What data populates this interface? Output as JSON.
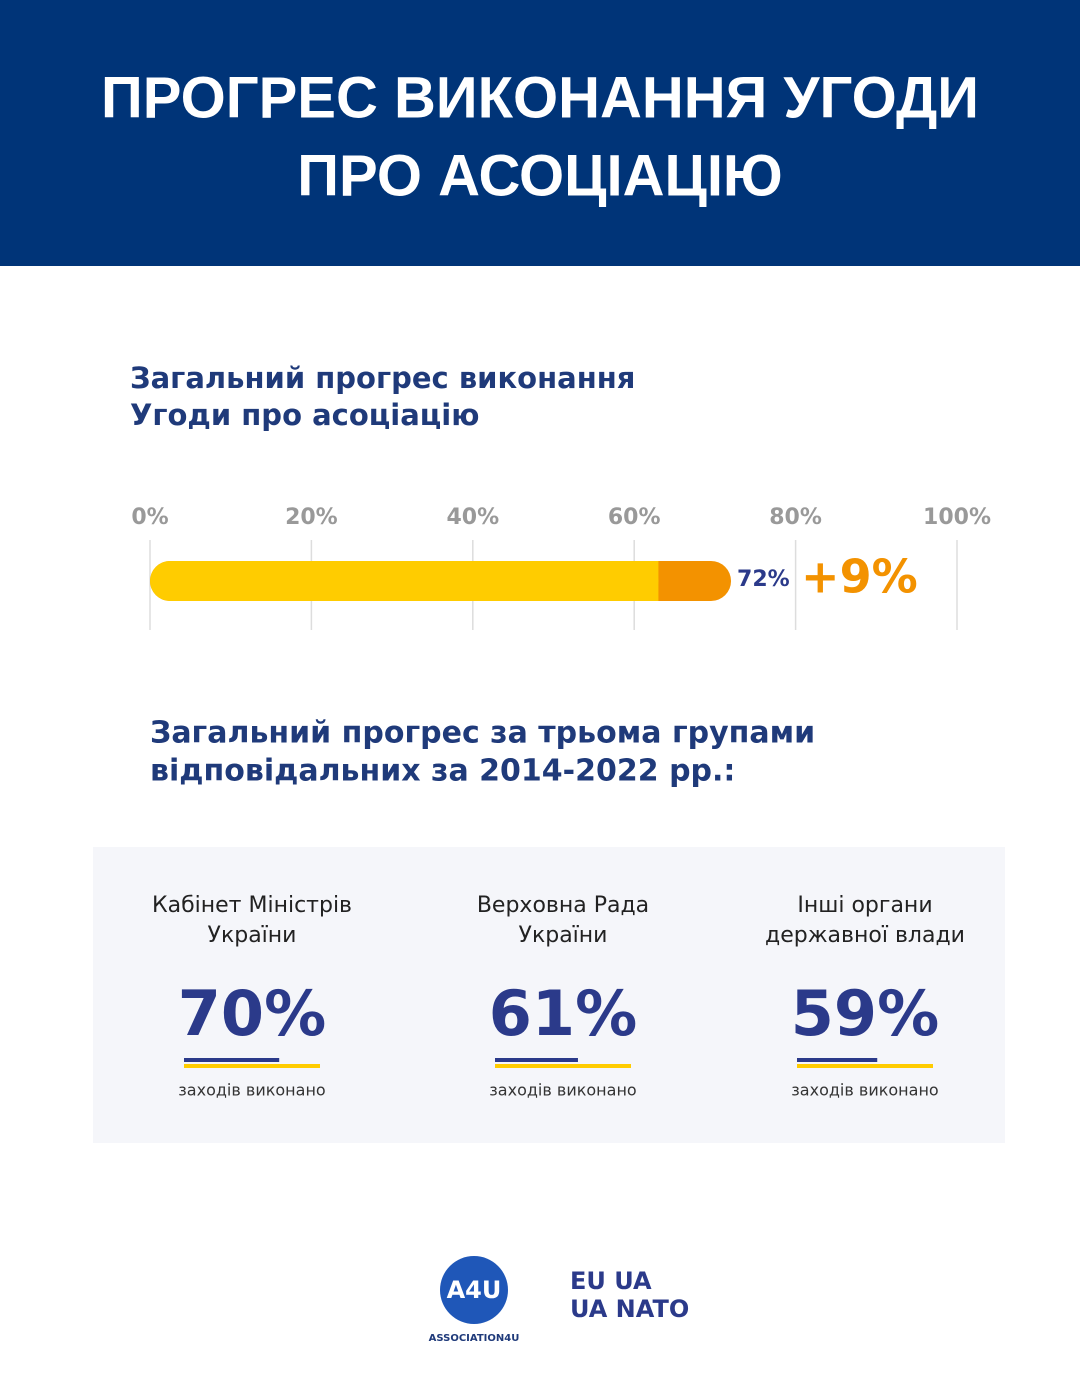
{
  "header": {
    "title_lines": [
      "ПРОГРЕС ВИКОНАННЯ УГОДИ",
      "ПРО АСОЦІАЦІЮ"
    ]
  },
  "progress": {
    "title_lines": [
      "Загальний прогрес виконання",
      "Угоди про асоціацію"
    ],
    "xlim": [
      0,
      100
    ],
    "xticks": [
      {
        "value": 0,
        "label": "0%"
      },
      {
        "value": 20,
        "label": "20%"
      },
      {
        "value": 40,
        "label": "40%"
      },
      {
        "value": 60,
        "label": "60%"
      },
      {
        "value": 80,
        "label": "80%"
      },
      {
        "value": 100,
        "label": "100%"
      }
    ],
    "value": 72,
    "value_label": "72%",
    "increase": 9,
    "increase_label": "+9%",
    "base_color": "#ffcc00",
    "increase_color": "#f39200"
  },
  "groups": {
    "title_lines": [
      "Загальний прогрес за трьома групами",
      "відповідальних за 2014-2022 рр.:"
    ],
    "items": [
      {
        "name_lines": [
          "Кабінет Міністрів",
          "України"
        ],
        "value": 70,
        "value_label": "70%",
        "caption": "заходів виконано"
      },
      {
        "name_lines": [
          "Верховна Рада",
          "України"
        ],
        "value": 61,
        "value_label": "61%",
        "caption": "заходів виконано"
      },
      {
        "name_lines": [
          "Інші органи",
          "державної влади"
        ],
        "value": 59,
        "value_label": "59%",
        "caption": "заходів виконано"
      }
    ]
  },
  "footer": {
    "logo1": "A4U",
    "logo1_caption": "ASSOCIATION4U",
    "logo2_lines": [
      "EU UA",
      "UA NATO"
    ]
  }
}
